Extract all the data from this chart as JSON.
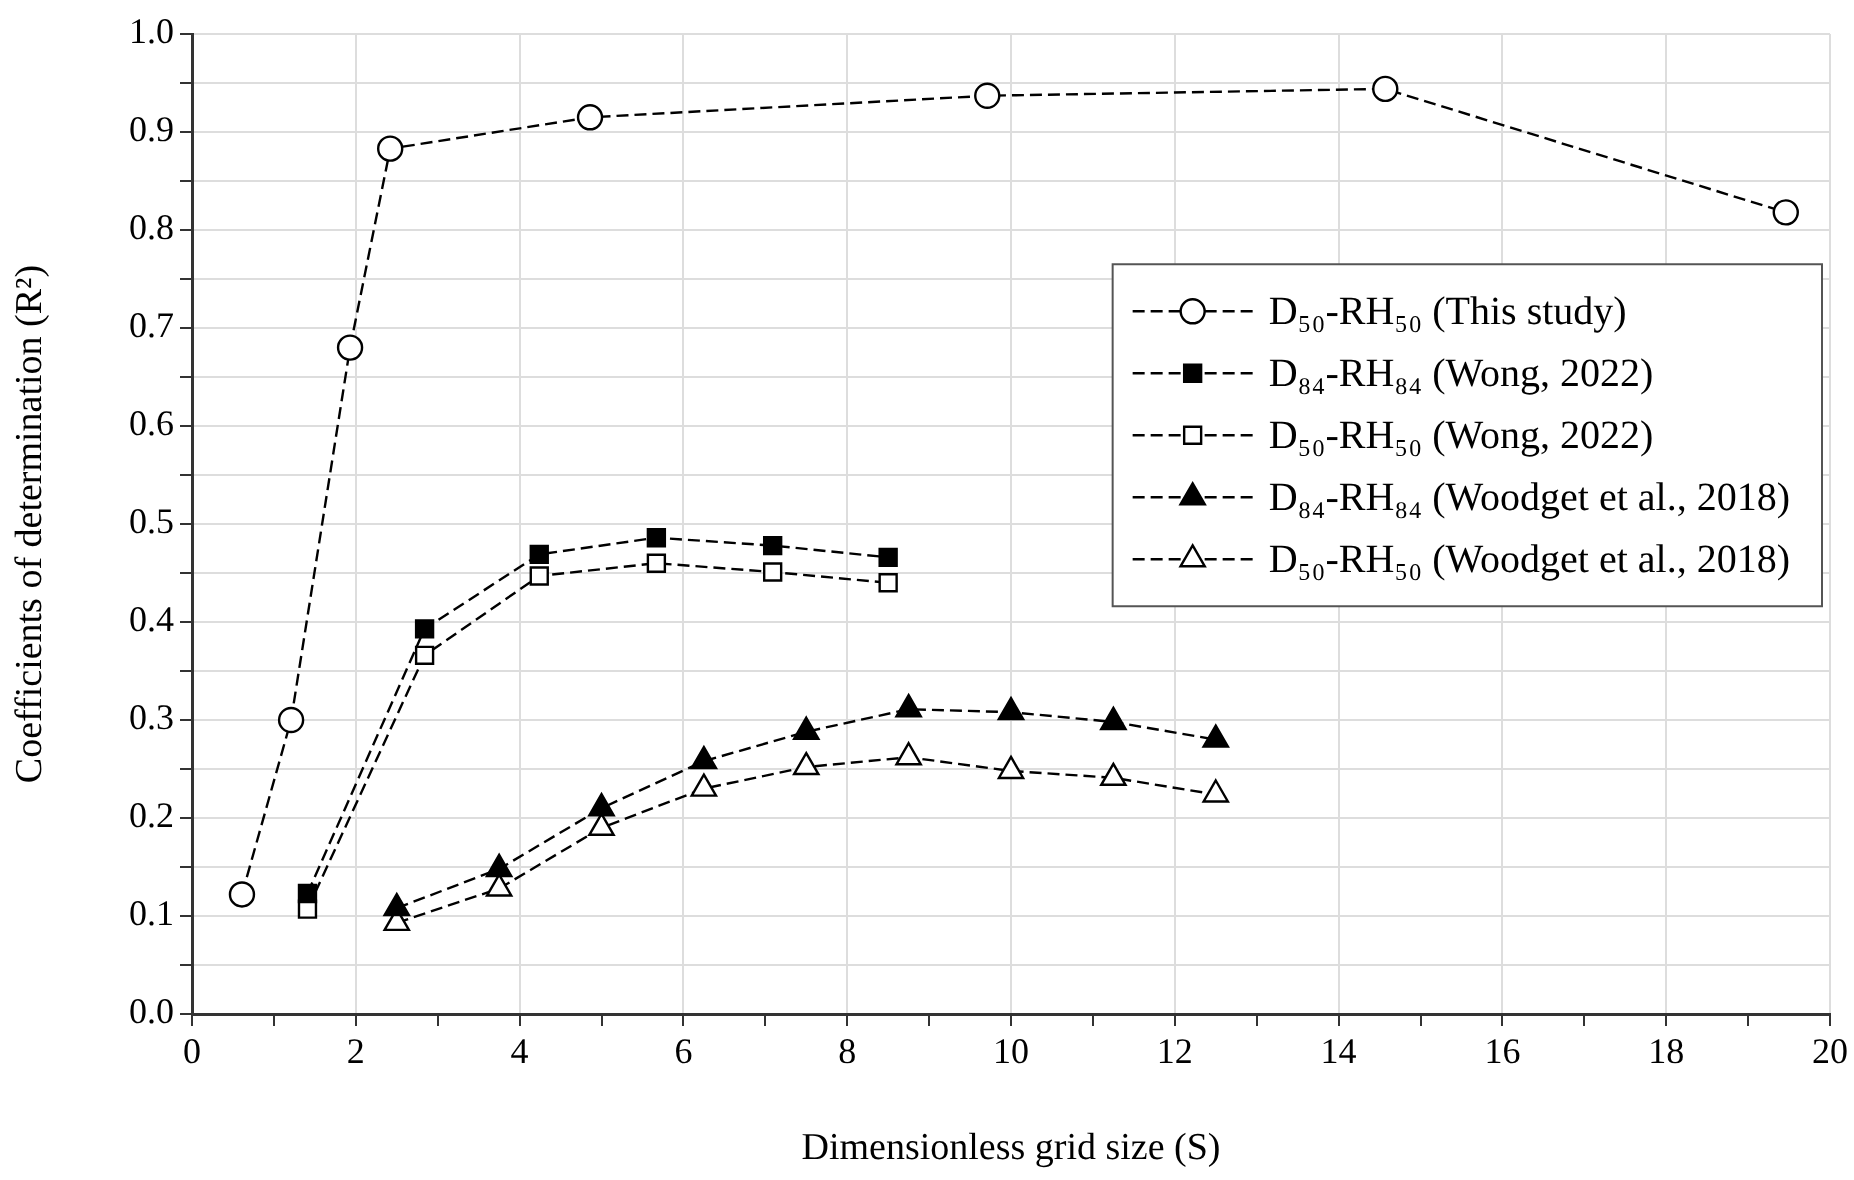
{
  "chart_data": {
    "type": "line",
    "xlabel": "Dimensionless grid size (S)",
    "ylabel": "Coefficients of determination (R²)",
    "xlim": [
      0,
      20
    ],
    "xticks": [
      0,
      {
        "value": 1,
        "label": null
      },
      2,
      {
        "value": 3,
        "label": null
      },
      4,
      {
        "value": 5,
        "label": null
      },
      6,
      {
        "value": 7,
        "label": null
      },
      8,
      {
        "value": 9,
        "label": null
      },
      10,
      {
        "value": 11,
        "label": null
      },
      12,
      {
        "value": 13,
        "label": null
      },
      14,
      {
        "value": 15,
        "label": null
      },
      16,
      {
        "value": 17,
        "label": null
      },
      18,
      {
        "value": 19,
        "label": null
      },
      20
    ],
    "ylim": [
      0,
      1
    ],
    "yticks": [
      {
        "value": 0,
        "label": "0.0"
      },
      {
        "value": 0.05,
        "label": null
      },
      0.1,
      {
        "value": 0.15,
        "label": null
      },
      0.2,
      {
        "value": 0.25,
        "label": null
      },
      0.3,
      {
        "value": 0.35,
        "label": null
      },
      0.4,
      {
        "value": 0.45,
        "label": null
      },
      0.5,
      {
        "value": 0.55,
        "label": null
      },
      0.6,
      {
        "value": 0.65,
        "label": null
      },
      0.7,
      {
        "value": 0.75,
        "label": null
      },
      0.8,
      {
        "value": 0.85,
        "label": null
      },
      0.9,
      {
        "value": 0.95,
        "label": null
      },
      {
        "value": 1,
        "label": "1.0"
      }
    ],
    "grid": true,
    "legend": "right",
    "line_style": "dashed",
    "series": [
      {
        "name": "D₅₀-RH₅₀ (This study)",
        "color": "#000000",
        "marker": "circle-open",
        "x": [
          0.61,
          1.21,
          1.93,
          2.42,
          4.86,
          9.71,
          14.57,
          19.46
        ],
        "values": [
          0.122,
          0.3,
          0.68,
          0.883,
          0.915,
          0.937,
          0.944,
          0.818
        ]
      },
      {
        "name": "D₈₄-RH₈₄ (Wong, 2022)",
        "color": "#000000",
        "marker": "square",
        "x": [
          1.41,
          2.84,
          4.24,
          5.67,
          7.09,
          8.5
        ],
        "values": [
          0.123,
          0.393,
          0.469,
          0.486,
          0.478,
          0.466
        ]
      },
      {
        "name": "D₅₀-RH₅₀ (Wong, 2022)",
        "color": "#000000",
        "marker": "square-open",
        "x": [
          1.41,
          2.84,
          4.24,
          5.67,
          7.09,
          8.5
        ],
        "values": [
          0.107,
          0.366,
          0.447,
          0.46,
          0.451,
          0.44
        ]
      },
      {
        "name": "D₈₄-RH₈₄ (Woodget et al., 2018)",
        "color": "#000000",
        "marker": "triangle",
        "x": [
          2.5,
          3.75,
          5,
          6.25,
          7.5,
          8.75,
          10,
          11.25,
          12.5
        ],
        "values": [
          0.108,
          0.148,
          0.21,
          0.258,
          0.288,
          0.311,
          0.308,
          0.298,
          0.28
        ]
      },
      {
        "name": "D₅₀-RH₅₀ (Woodget et al., 2018)",
        "color": "#000000",
        "marker": "triangle-open",
        "x": [
          2.5,
          3.75,
          5,
          6.25,
          7.5,
          8.75,
          10,
          11.25,
          12.5
        ],
        "values": [
          0.093,
          0.128,
          0.19,
          0.23,
          0.252,
          0.262,
          0.248,
          0.241,
          0.224
        ]
      }
    ]
  }
}
